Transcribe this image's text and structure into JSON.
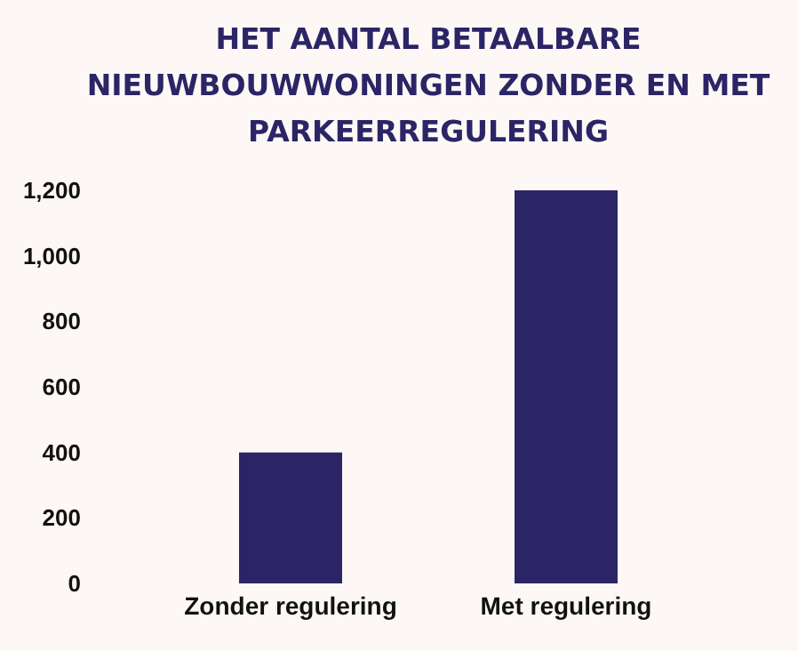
{
  "chart_data": {
    "type": "bar",
    "title": "HET AANTAL BETAALBARE NIEUWBOUWWONINGEN ZONDER EN MET PARKEERREGULERING",
    "categories": [
      "Zonder regulering",
      "Met regulering"
    ],
    "values": [
      400,
      1200
    ],
    "color": "#2b2566",
    "ylim": [
      0,
      1200
    ],
    "yticks": [
      {
        "value": 0,
        "label": "0"
      },
      {
        "value": 200,
        "label": "200"
      },
      {
        "value": 400,
        "label": "400"
      },
      {
        "value": 600,
        "label": "600"
      },
      {
        "value": 800,
        "label": "800"
      },
      {
        "value": 1000,
        "label": "1,000"
      },
      {
        "value": 1200,
        "label": "1,200"
      }
    ],
    "grid": false
  }
}
